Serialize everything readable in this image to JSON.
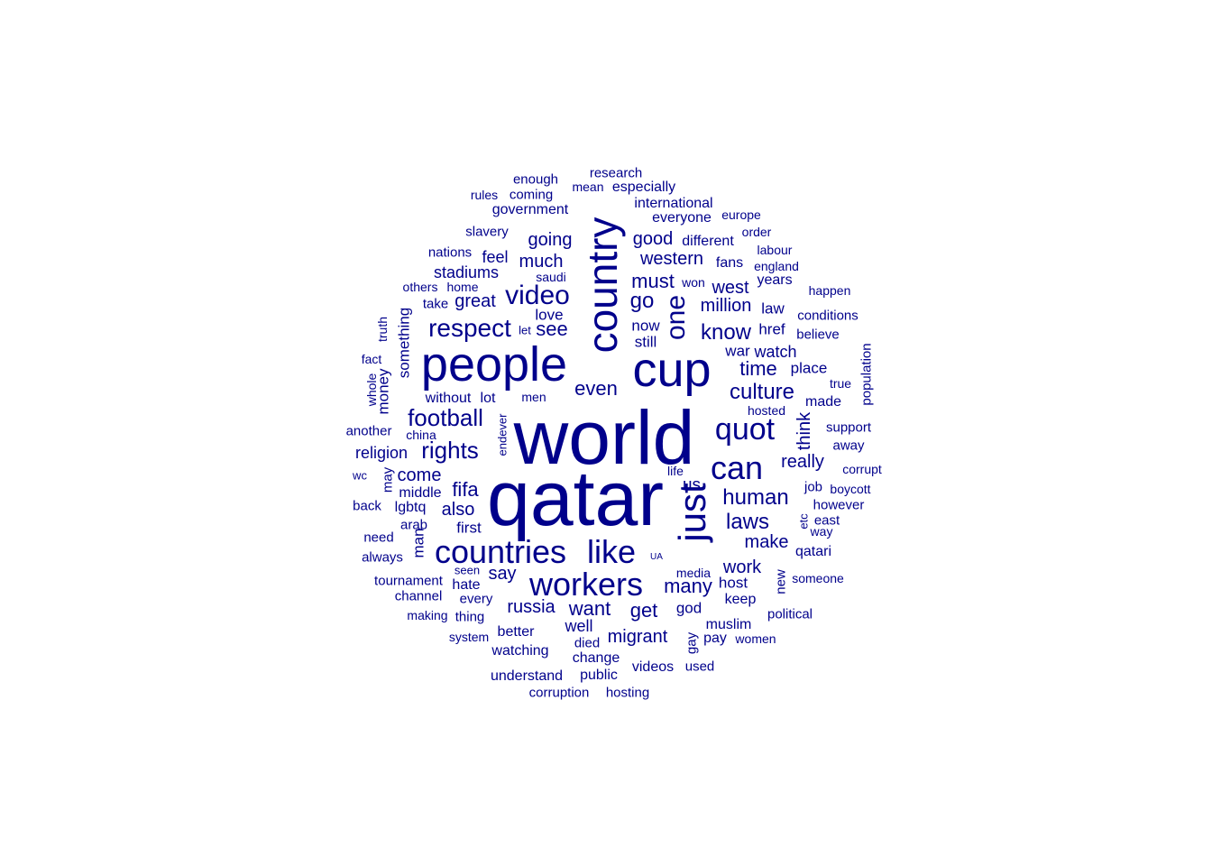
{
  "colors": {
    "word": "#00008B",
    "background": "#ffffff"
  },
  "words": [
    "world",
    "qatar",
    "people",
    "cup",
    "country",
    "just",
    "countries",
    "like",
    "workers",
    "can",
    "quot",
    "one",
    "video",
    "respect",
    "football",
    "rights",
    "culture",
    "human",
    "laws",
    "go",
    "know",
    "even",
    "see",
    "fifa",
    "also",
    "say",
    "migrant",
    "russia",
    "want",
    "get",
    "many",
    "time",
    "make",
    "must",
    "western",
    "good",
    "going",
    "much",
    "great",
    "stadiums",
    "million",
    "west",
    "really",
    "think",
    "come",
    "religion",
    "work",
    "place",
    "love",
    "now",
    "still",
    "well",
    "change",
    "watching",
    "better",
    "understand",
    "public",
    "videos",
    "corruption",
    "hosting",
    "muslim",
    "pay",
    "women",
    "god",
    "keep",
    "host",
    "political",
    "gay",
    "used",
    "died",
    "media",
    "someone",
    "new",
    "qatari",
    "way",
    "east",
    "etc",
    "job",
    "boycott",
    "however",
    "corrupt",
    "support",
    "away",
    "life",
    "us",
    "made",
    "population",
    "true",
    "hosted",
    "watch",
    "war",
    "believe",
    "conditions",
    "happen",
    "law",
    "years",
    "href",
    "england",
    "labour",
    "fans",
    "order",
    "different",
    "europe",
    "everyone",
    "international",
    "especially",
    "research",
    "mean",
    "enough",
    "coming",
    "rules",
    "government",
    "slavery",
    "nations",
    "feel",
    "saudi",
    "others",
    "home",
    "take",
    "something",
    "truth",
    "let",
    "fact",
    "whole",
    "money",
    "without",
    "lot",
    "men",
    "another",
    "china",
    "wc",
    "may",
    "middle",
    "lgbtq",
    "arab",
    "back",
    "man",
    "first",
    "need",
    "always",
    "tournament",
    "seen",
    "hate",
    "channel",
    "every",
    "making",
    "thing",
    "system",
    "UA",
    "endever",
    "won"
  ]
}
